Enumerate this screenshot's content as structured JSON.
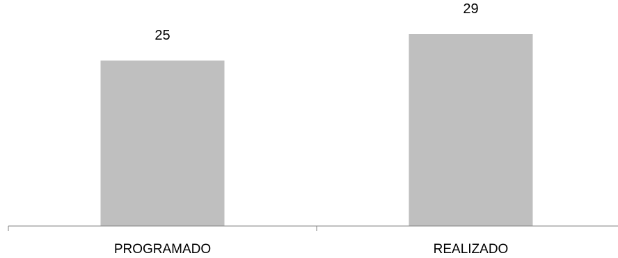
{
  "chart_data": {
    "type": "bar",
    "categories": [
      "PROGRAMADO",
      "REALIZADO"
    ],
    "values": [
      25,
      29
    ],
    "data_labels": [
      "25",
      "29"
    ],
    "title": "",
    "xlabel": "",
    "ylabel": "",
    "ylim": [
      0,
      30
    ],
    "grid": false,
    "legend": "none",
    "bar_color": "#bfbfbf",
    "axis_color": "#808080"
  }
}
